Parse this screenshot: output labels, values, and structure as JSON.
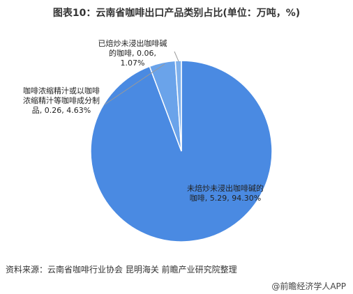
{
  "chart_data": {
    "type": "pie",
    "title": "图表10：云南省咖啡出口产品类别占比(单位：万吨，%)",
    "values": [
      0.06,
      0.26,
      5.29
    ],
    "value_labels": [
      "已焙炒未浸出咖啡碱的咖啡, 0.06, 1.07%",
      "咖啡浓缩精汁或以咖啡浓缩精汁等咖啡成分制品, 0.26, 4.63%",
      "未焙炒未浸出咖啡碱的咖啡, 5.29, 94.30%"
    ],
    "colors": [
      "#7eb0ec",
      "#6aa3ea",
      "#4a8ae2"
    ]
  },
  "source": "资料来源：云南省咖啡行业协会 昆明海关 前瞻产业研究院整理",
  "credit": "@前瞻经济学人APP"
}
